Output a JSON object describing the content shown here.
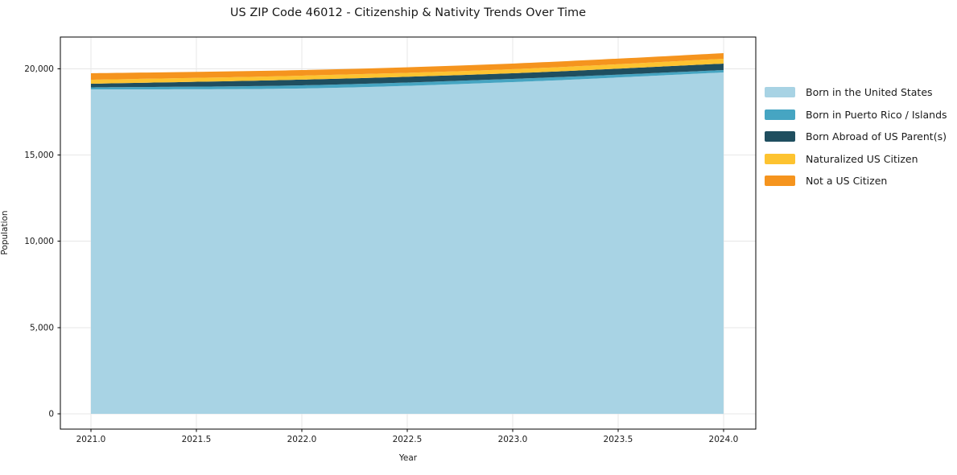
{
  "chart_data": {
    "type": "area",
    "stacked": true,
    "title": "US ZIP Code 46012 - Citizenship & Nativity Trends Over Time",
    "xlabel": "Year",
    "ylabel": "Population",
    "x": [
      2021,
      2022,
      2023,
      2024
    ],
    "series": [
      {
        "name": "Born in the United States",
        "color": "#a8d3e4",
        "values": [
          18810,
          18860,
          19230,
          19790
        ]
      },
      {
        "name": "Born in Puerto Rico / Islands",
        "color": "#46a5c2",
        "values": [
          115,
          185,
          185,
          140
        ]
      },
      {
        "name": "Born Abroad of US Parent(s)",
        "color": "#1f4e5f",
        "values": [
          210,
          330,
          330,
          375
        ]
      },
      {
        "name": "Naturalized US Citizen",
        "color": "#fdc330",
        "values": [
          235,
          230,
          235,
          280
        ]
      },
      {
        "name": "Not a US Citizen",
        "color": "#f5941e",
        "values": [
          375,
          325,
          325,
          325
        ]
      }
    ],
    "totals": [
      19745,
      19930,
      20305,
      20910
    ],
    "x_ticks": [
      2021.0,
      2021.5,
      2022.0,
      2022.5,
      2023.0,
      2023.5,
      2024.0
    ],
    "x_tick_labels": [
      "2021.0",
      "2021.5",
      "2022.0",
      "2022.5",
      "2023.0",
      "2023.5",
      "2024.0"
    ],
    "y_ticks": [
      0,
      5000,
      10000,
      15000,
      20000
    ],
    "y_tick_labels": [
      "0",
      "5,000",
      "10,000",
      "15,000",
      "20,000"
    ],
    "x_range": [
      2020.855,
      2024.153
    ],
    "y_range": [
      -887,
      21843
    ],
    "grid": true,
    "legend_position": "right-outside",
    "style": {
      "grid_color": "#e7e7e7",
      "spine_color": "#000000",
      "tick_color": "#000000",
      "text_color": "#1a1a1a",
      "background": "#ffffff"
    }
  }
}
